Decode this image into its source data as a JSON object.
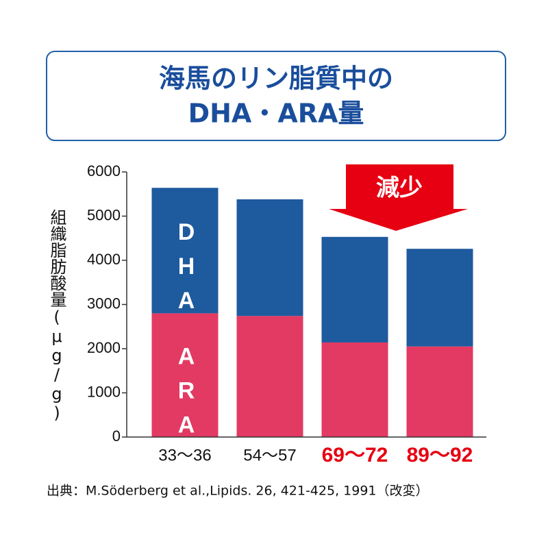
{
  "chart_data": {
    "type": "stacked_bar",
    "title_lines": [
      "海馬のリン脂質中の",
      "DHA・ARA量"
    ],
    "y_label": "組織脂肪酸量(μg/g)",
    "categories": [
      "33〜36",
      "54〜57",
      "69〜72",
      "89〜92"
    ],
    "category_label_colors": [
      "#111111",
      "#111111",
      "#e60012",
      "#e60012"
    ],
    "series": [
      {
        "name": "ARA",
        "color": "#e23a63",
        "values": [
          2800,
          2740,
          2140,
          2050
        ]
      },
      {
        "name": "DHA",
        "color": "#1e5a9e",
        "values": [
          2840,
          2640,
          2390,
          2210
        ]
      }
    ],
    "ylim": [
      0,
      6000
    ],
    "yticks": [
      0,
      1000,
      2000,
      3000,
      4000,
      5000,
      6000
    ],
    "grid": false,
    "annotation": "減少",
    "source": "出典：M.Söderberg et al.,Lipids. 26, 421-425, 1991（改変）"
  }
}
